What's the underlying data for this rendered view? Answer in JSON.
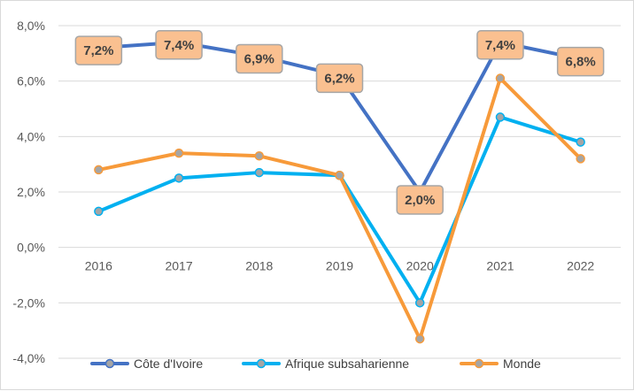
{
  "chart_data": {
    "type": "line",
    "categories": [
      "2016",
      "2017",
      "2018",
      "2019",
      "2020",
      "2021",
      "2022"
    ],
    "ylim": [
      -4,
      8
    ],
    "yticks": [
      -4,
      -2,
      0,
      2,
      4,
      6,
      8
    ],
    "ytick_labels": [
      "-4,0%",
      "-2,0%",
      "0,0%",
      "2,0%",
      "4,0%",
      "6,0%",
      "8,0%"
    ],
    "grid": true,
    "legend_position": "bottom",
    "series": [
      {
        "name": "Côte d'Ivoire",
        "color": "#4472c4",
        "values": [
          7.2,
          7.4,
          6.9,
          6.2,
          2.0,
          7.4,
          6.8
        ],
        "data_labels": [
          "7,2%",
          "7,4%",
          "6,9%",
          "6,2%",
          "2,0%",
          "7,4%",
          "6,8%"
        ]
      },
      {
        "name": "Afrique subsaharienne",
        "color": "#00b0f0",
        "values": [
          1.3,
          2.5,
          2.7,
          2.6,
          -2.0,
          4.7,
          3.8
        ]
      },
      {
        "name": "Monde",
        "color": "#f79a3a",
        "values": [
          2.8,
          3.4,
          3.3,
          2.6,
          -3.3,
          6.1,
          3.2
        ]
      }
    ],
    "label_box_fill": "#fac090",
    "label_box_stroke": "#a6a6a6",
    "marker_fill": "#a5a5a5"
  }
}
